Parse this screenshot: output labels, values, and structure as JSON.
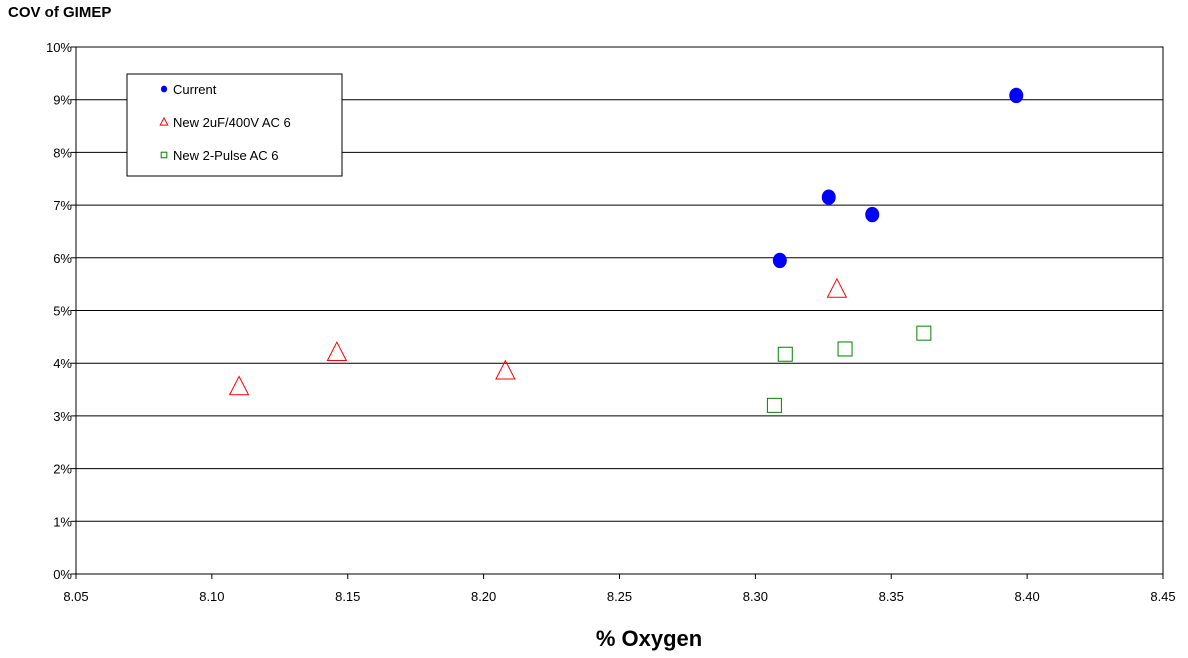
{
  "chart_data": {
    "type": "scatter",
    "title": "COV of GIMEP",
    "xlabel": "% Oxygen",
    "ylabel": "",
    "xlim": [
      8.05,
      8.45
    ],
    "ylim": [
      0,
      0.1
    ],
    "x_ticks": [
      8.05,
      8.1,
      8.15,
      8.2,
      8.25,
      8.3,
      8.35,
      8.4,
      8.45
    ],
    "x_tick_labels": [
      "8.05",
      "8.10",
      "8.15",
      "8.20",
      "8.25",
      "8.30",
      "8.35",
      "8.40",
      "8.45"
    ],
    "y_ticks": [
      0,
      0.01,
      0.02,
      0.03,
      0.04,
      0.05,
      0.06,
      0.07,
      0.08,
      0.09,
      0.1
    ],
    "y_tick_labels": [
      "0%",
      "1%",
      "2%",
      "3%",
      "4%",
      "5%",
      "6%",
      "7%",
      "8%",
      "9%",
      "10%"
    ],
    "grid": "horizontal major gridlines",
    "legend_position": "top-left inside plot",
    "series": [
      {
        "name": "Current",
        "marker": "filled-circle",
        "color": "#0000ff",
        "points": [
          {
            "x": 8.309,
            "y": 0.0595
          },
          {
            "x": 8.327,
            "y": 0.0715
          },
          {
            "x": 8.343,
            "y": 0.0682
          },
          {
            "x": 8.396,
            "y": 0.0908
          }
        ]
      },
      {
        "name": "New 2uF/400V AC 6",
        "marker": "open-triangle",
        "color": "#ff0000",
        "points": [
          {
            "x": 8.11,
            "y": 0.0355
          },
          {
            "x": 8.146,
            "y": 0.042
          },
          {
            "x": 8.208,
            "y": 0.0385
          },
          {
            "x": 8.33,
            "y": 0.054
          }
        ]
      },
      {
        "name": "New 2-Pulse AC 6",
        "marker": "open-square",
        "color": "#008000",
        "points": [
          {
            "x": 8.307,
            "y": 0.032
          },
          {
            "x": 8.311,
            "y": 0.0417
          },
          {
            "x": 8.333,
            "y": 0.0427
          },
          {
            "x": 8.362,
            "y": 0.0457
          }
        ]
      }
    ]
  }
}
